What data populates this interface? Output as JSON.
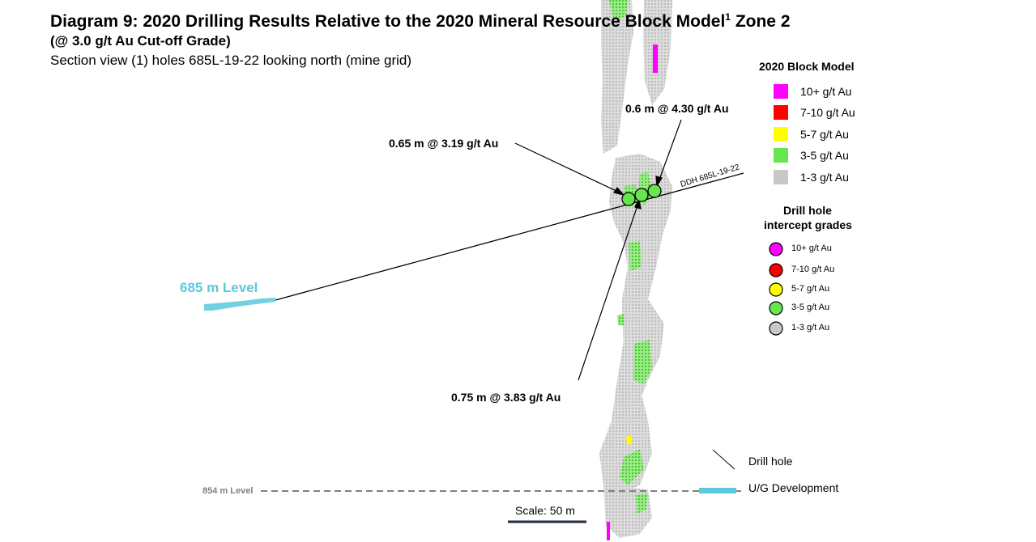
{
  "header": {
    "title": "Diagram 9: 2020 Drilling Results Relative to the 2020 Mineral Resource Block Model",
    "title_sup": "1",
    "title_suffix": " Zone 2",
    "subtitle": "(@ 3.0 g/t Au Cut-off Grade)",
    "section": "Section view (1) holes 685L-19-22 looking north (mine grid)"
  },
  "intercepts": [
    {
      "label": "0.65 m @ 3.19 g/t Au",
      "grade_class": "3-5 g/t Au"
    },
    {
      "label": "0.75 m @ 3.83 g/t Au",
      "grade_class": "3-5 g/t Au"
    },
    {
      "label": "0.6 m @ 4.30 g/t Au",
      "grade_class": "3-5 g/t Au"
    }
  ],
  "drill_hole": {
    "name": "DDH 685L-19-22"
  },
  "levels": {
    "upper": "685 m Level",
    "lower": "854 m Level"
  },
  "block_model_legend": {
    "title": "2020 Block Model",
    "items": [
      {
        "label": "10+ g/t Au",
        "color": "#ff00ff"
      },
      {
        "label": "7-10 g/t Au",
        "color": "#ff0000"
      },
      {
        "label": "5-7 g/t Au",
        "color": "#ffff00"
      },
      {
        "label": "3-5 g/t Au",
        "color": "#66e64c"
      },
      {
        "label": "1-3 g/t Au",
        "color": "#c8c8c8"
      }
    ]
  },
  "intercept_legend": {
    "title_line1": "Drill hole",
    "title_line2": "intercept grades",
    "items": [
      {
        "label": "10+ g/t Au",
        "color": "#ff00ff"
      },
      {
        "label": "7-10 g/t Au",
        "color": "#ff0000"
      },
      {
        "label": "5-7 g/t Au",
        "color": "#ffff00"
      },
      {
        "label": "3-5 g/t Au",
        "color": "#66e64c"
      },
      {
        "label": "1-3 g/t Au",
        "color": "#c8c8c8"
      }
    ]
  },
  "symbol_legend": {
    "drill_hole": "Drill hole",
    "ug_development": "U/G Development"
  },
  "scale": {
    "label": "Scale: 50 m"
  },
  "colors": {
    "level_cyan": "#5bc8dc",
    "dashed_level": "#808080",
    "scale_bar": "#1f2a44"
  }
}
